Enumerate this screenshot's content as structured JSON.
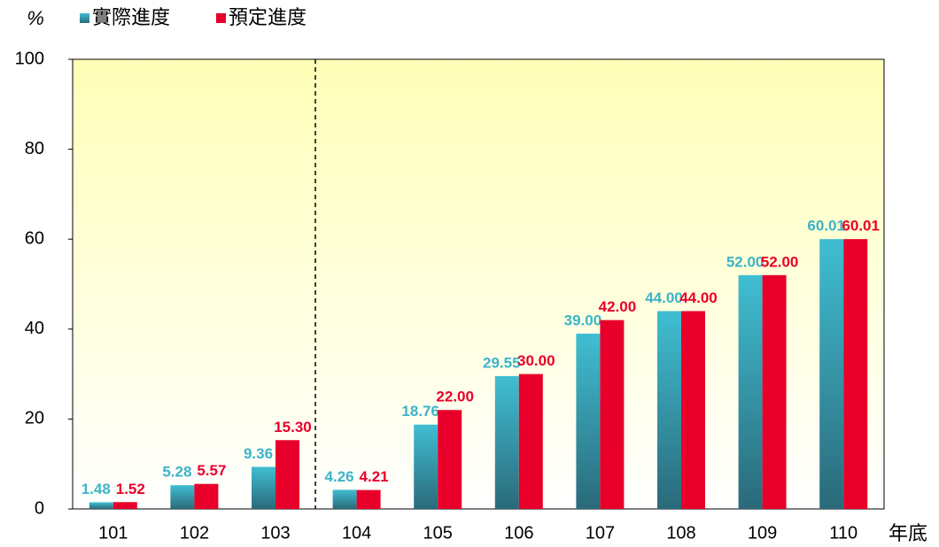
{
  "chart_data": {
    "type": "bar",
    "ylabel": "%",
    "xlabel": "年底",
    "categories": [
      "101",
      "102",
      "103",
      "104",
      "105",
      "106",
      "107",
      "108",
      "109",
      "110"
    ],
    "series": [
      {
        "name": "實際進度",
        "color": "#3ab4c8",
        "values": [
          1.48,
          5.28,
          9.36,
          4.26,
          18.76,
          29.55,
          39,
          44,
          52,
          60.01
        ],
        "value_labels": [
          "1.48",
          "5.28",
          "9.36",
          "4.26",
          "18.76",
          "29.55",
          "39.00",
          "44.00",
          "52.00",
          "60.01"
        ]
      },
      {
        "name": "預定進度",
        "color": "#e8002a",
        "values": [
          1.52,
          5.57,
          15.3,
          4.21,
          22,
          30,
          42,
          44,
          52,
          60.01
        ],
        "value_labels": [
          "1.52",
          "5.57",
          "15.30",
          "4.21",
          "22.00",
          "30.00",
          "42.00",
          "44.00",
          "52.00",
          "60.01"
        ]
      }
    ],
    "ylim": [
      0,
      100
    ],
    "yticks": [
      0,
      20,
      40,
      60,
      80,
      100
    ]
  }
}
